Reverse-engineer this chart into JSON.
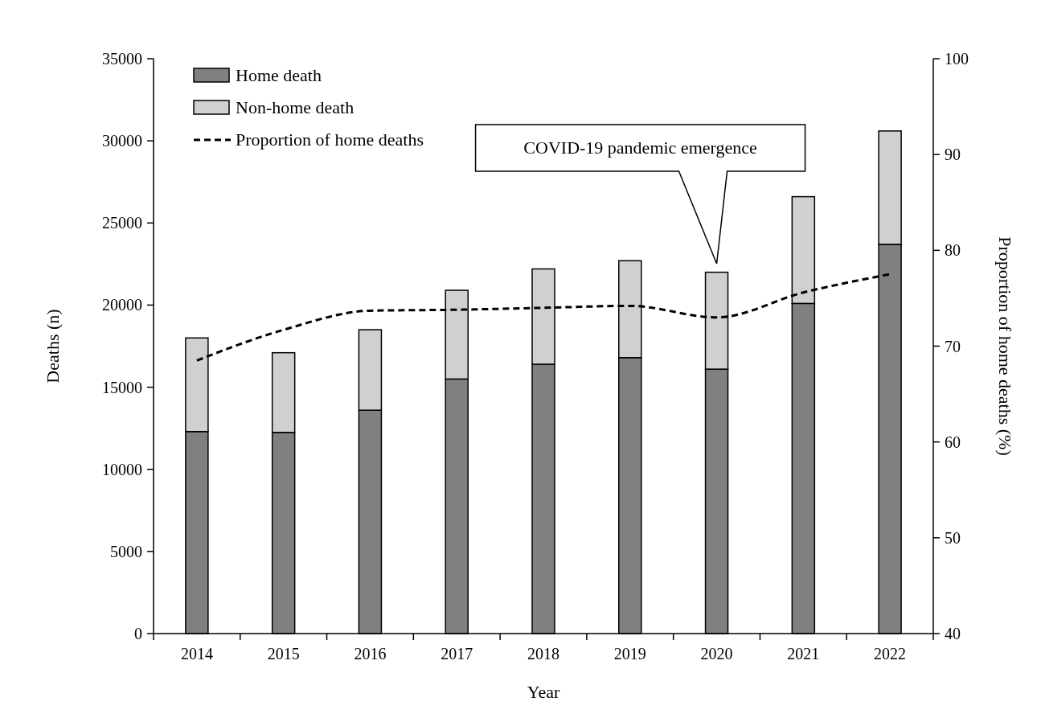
{
  "chart_data": {
    "type": "bar",
    "stacked": true,
    "xlabel": "Year",
    "ylabel": "Deaths (n)",
    "y2label": "Proportion of home deaths (%)",
    "categories": [
      "2014",
      "2015",
      "2016",
      "2017",
      "2018",
      "2019",
      "2020",
      "2021",
      "2022"
    ],
    "series": [
      {
        "name": "Home death",
        "color": "#808080",
        "values": [
          12300,
          12250,
          13600,
          15500,
          16400,
          16800,
          16100,
          20100,
          23700
        ]
      },
      {
        "name": "Non-home death",
        "color": "#d0d0d0",
        "values": [
          5700,
          4850,
          4900,
          5400,
          5800,
          5900,
          5900,
          6500,
          6900
        ]
      },
      {
        "name": "Proportion of home deaths",
        "type": "line",
        "axis": "y2",
        "color": "#000000",
        "line_style": "dashed",
        "values": [
          68.5,
          71.7,
          73.7,
          73.8,
          74.0,
          74.2,
          73.0,
          75.6,
          77.5
        ]
      }
    ],
    "ylim": [
      0,
      35000
    ],
    "yticks": [
      0,
      5000,
      10000,
      15000,
      20000,
      25000,
      30000,
      35000
    ],
    "y2lim": [
      40,
      100
    ],
    "y2ticks": [
      40,
      50,
      60,
      70,
      80,
      90,
      100
    ],
    "annotations": [
      "COVID-19 pandemic emergence"
    ],
    "legend": "top left",
    "grid": false
  }
}
